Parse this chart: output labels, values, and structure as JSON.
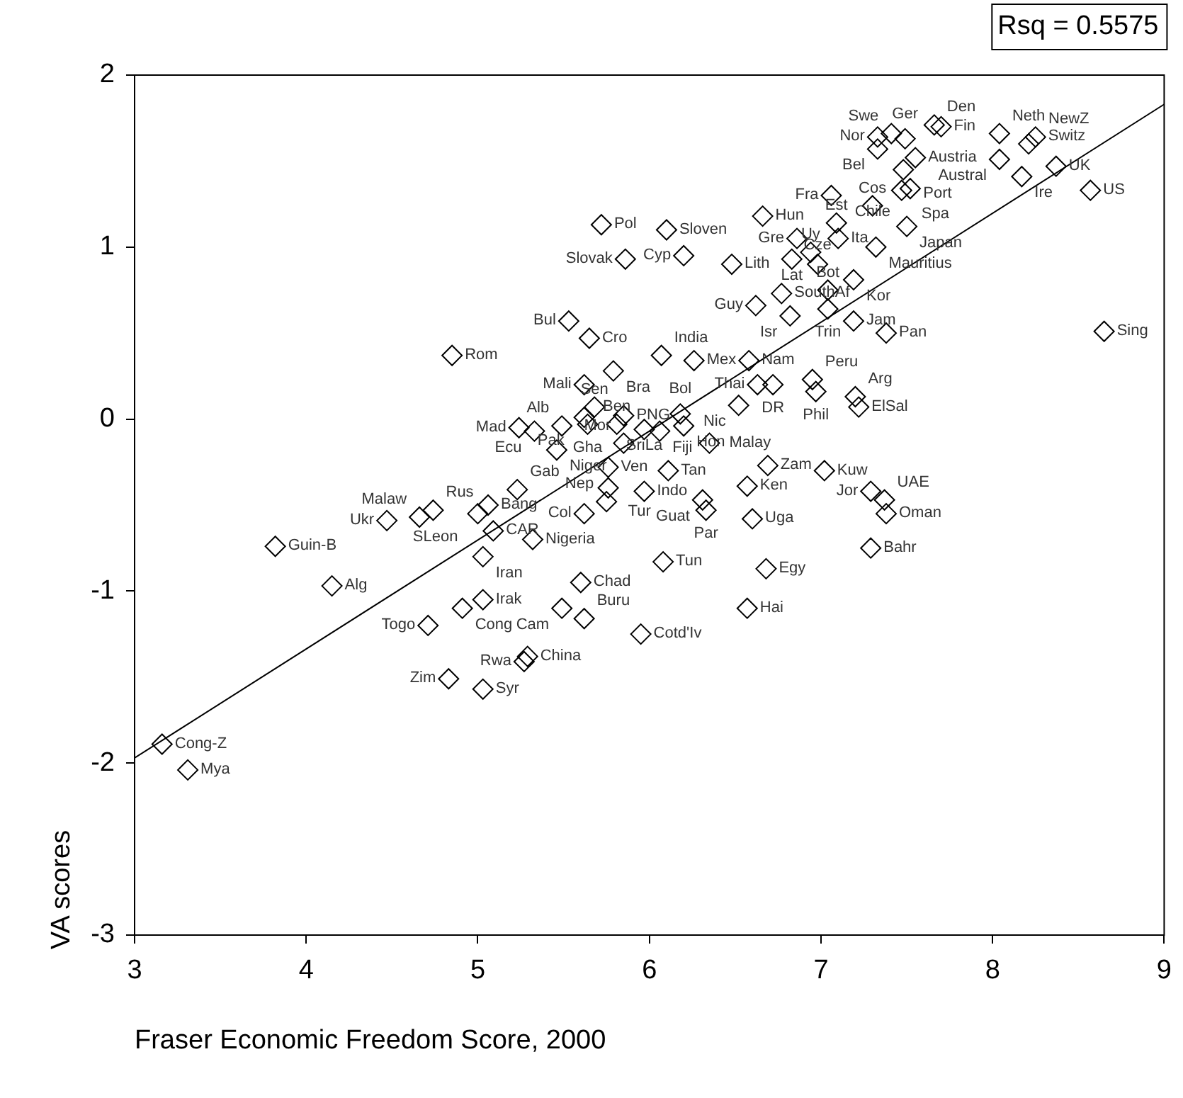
{
  "chart_data": {
    "type": "scatter",
    "xlabel": "Fraser Economic Freedom Score, 2000",
    "ylabel": "VA scores",
    "xlim": [
      3,
      9
    ],
    "xticks": [
      3,
      4,
      5,
      6,
      7,
      8,
      9
    ],
    "ylim": [
      -3,
      2
    ],
    "yticks": [
      -3,
      -2,
      -1,
      0,
      1,
      2
    ],
    "grid": false,
    "legend": false,
    "marker": "diamond",
    "series": [
      {
        "type": "scatter",
        "color": "#000000",
        "x": [
          3.16,
          3.31,
          3.82,
          4.15,
          4.47,
          4.66,
          4.74,
          5.0,
          5.06,
          5.09,
          5.23,
          4.71,
          4.83,
          5.03,
          4.91,
          5.03,
          5.03,
          4.85,
          5.72,
          6.1,
          5.86,
          6.2,
          6.66,
          6.48,
          6.62,
          5.53,
          5.65,
          5.79,
          6.07,
          6.26,
          6.58,
          6.63,
          6.72,
          6.95,
          6.97,
          6.52,
          5.62,
          5.68,
          5.64,
          5.81,
          5.24,
          5.33,
          5.49,
          5.46,
          5.62,
          5.85,
          5.97,
          6.18,
          6.06,
          6.2,
          5.85,
          6.35,
          7.02,
          6.69,
          5.76,
          6.11,
          5.76,
          5.97,
          5.75,
          5.62,
          6.31,
          6.33,
          6.57,
          6.6,
          6.68,
          6.57,
          6.08,
          5.32,
          5.6,
          5.49,
          5.62,
          5.95,
          5.29,
          5.27,
          7.2,
          7.22,
          7.29,
          7.37,
          7.38,
          7.29,
          7.66,
          7.7,
          7.33,
          7.41,
          7.49,
          7.33,
          7.55,
          7.48,
          7.47,
          7.3,
          7.52,
          7.06,
          7.09,
          7.5,
          7.1,
          7.32,
          7.19,
          7.04,
          7.04,
          7.19,
          7.38,
          8.04,
          8.25,
          8.21,
          8.04,
          8.17,
          8.37,
          8.57,
          8.65,
          6.86,
          6.94,
          6.83,
          6.98,
          6.77,
          6.82
        ],
        "values": [
          -1.89,
          -2.04,
          -0.74,
          -0.97,
          -0.59,
          -0.57,
          -0.53,
          -0.55,
          -0.5,
          -0.65,
          -0.41,
          -1.2,
          -1.51,
          -1.57,
          -1.1,
          -0.8,
          -1.05,
          0.37,
          1.13,
          1.1,
          0.93,
          0.95,
          1.18,
          0.9,
          0.66,
          0.57,
          0.47,
          0.28,
          0.37,
          0.34,
          0.34,
          0.2,
          0.2,
          0.23,
          0.16,
          0.08,
          0.2,
          0.07,
          -0.03,
          -0.03,
          -0.05,
          -0.07,
          -0.04,
          -0.18,
          0.01,
          0.02,
          -0.06,
          0.03,
          -0.07,
          -0.04,
          -0.14,
          -0.14,
          -0.3,
          -0.27,
          -0.28,
          -0.3,
          -0.4,
          -0.42,
          -0.48,
          -0.55,
          -0.47,
          -0.53,
          -0.39,
          -0.58,
          -0.87,
          -1.1,
          -0.83,
          -0.7,
          -0.95,
          -1.1,
          -1.16,
          -1.25,
          -1.38,
          -1.41,
          0.13,
          0.07,
          -0.42,
          -0.47,
          -0.55,
          -0.75,
          1.71,
          1.7,
          1.64,
          1.66,
          1.63,
          1.57,
          1.52,
          1.45,
          1.33,
          1.24,
          1.34,
          1.3,
          1.14,
          1.12,
          1.05,
          1.0,
          0.81,
          0.75,
          0.64,
          0.57,
          0.5,
          1.66,
          1.64,
          1.6,
          1.51,
          1.41,
          1.47,
          1.33,
          0.51,
          1.05,
          0.97,
          0.93,
          0.9,
          0.73,
          0.6
        ]
      },
      {
        "type": "line",
        "marker": "none",
        "color": "#000000",
        "x": [
          3,
          9
        ],
        "values": [
          -1.97,
          1.83
        ]
      }
    ],
    "annotations": [
      "Rsq = 0.5575",
      {
        "text": "Cong-Z",
        "x": 3.16,
        "y": -1.89
      },
      {
        "text": "Mya",
        "x": 3.31,
        "y": -2.04
      },
      {
        "text": "Guin-B",
        "x": 3.82,
        "y": -0.74
      },
      {
        "text": "Alg",
        "x": 4.15,
        "y": -0.97
      },
      {
        "text": "Ukr",
        "x": 4.47,
        "y": -0.59
      },
      {
        "text": "Malaw",
        "x": 4.66,
        "y": -0.57
      },
      {
        "text": "Rus",
        "x": 4.74,
        "y": -0.53
      },
      {
        "text": "SLeon",
        "x": 5.0,
        "y": -0.55
      },
      {
        "text": "Bang",
        "x": 5.06,
        "y": -0.5
      },
      {
        "text": "CAR",
        "x": 5.09,
        "y": -0.65
      },
      {
        "text": "Gab",
        "x": 5.23,
        "y": -0.41
      },
      {
        "text": "Togo",
        "x": 4.71,
        "y": -1.2
      },
      {
        "text": "Zim",
        "x": 4.83,
        "y": -1.51
      },
      {
        "text": "Syr",
        "x": 5.03,
        "y": -1.57
      },
      {
        "text": "Cong",
        "x": 4.91,
        "y": -1.1
      },
      {
        "text": "Iran",
        "x": 5.03,
        "y": -0.8
      },
      {
        "text": "Irak",
        "x": 5.03,
        "y": -1.05
      },
      {
        "text": "Rom",
        "x": 4.85,
        "y": 0.37
      },
      {
        "text": "Pol",
        "x": 5.72,
        "y": 1.13
      },
      {
        "text": "Sloven",
        "x": 6.1,
        "y": 1.1
      },
      {
        "text": "Slovak",
        "x": 5.86,
        "y": 0.93
      },
      {
        "text": "Cyp",
        "x": 6.2,
        "y": 0.95
      },
      {
        "text": "Hun",
        "x": 6.66,
        "y": 1.18
      },
      {
        "text": "Lith",
        "x": 6.48,
        "y": 0.9
      },
      {
        "text": "Guy",
        "x": 6.62,
        "y": 0.66
      },
      {
        "text": "Bul",
        "x": 5.53,
        "y": 0.57
      },
      {
        "text": "Cro",
        "x": 5.65,
        "y": 0.47
      },
      {
        "text": "Bra",
        "x": 5.79,
        "y": 0.28
      },
      {
        "text": "India",
        "x": 6.07,
        "y": 0.37
      },
      {
        "text": "Mex",
        "x": 6.26,
        "y": 0.34
      },
      {
        "text": "Nam",
        "x": 6.58,
        "y": 0.34
      },
      {
        "text": "Thai",
        "x": 6.63,
        "y": 0.2
      },
      {
        "text": "DR",
        "x": 6.72,
        "y": 0.2
      },
      {
        "text": "Peru",
        "x": 6.95,
        "y": 0.23
      },
      {
        "text": "Phil",
        "x": 6.97,
        "y": 0.16
      },
      {
        "text": "Nic",
        "x": 6.52,
        "y": 0.08
      },
      {
        "text": "Mali",
        "x": 5.62,
        "y": 0.2
      },
      {
        "text": "Sen",
        "x": 5.68,
        "y": 0.07
      },
      {
        "text": "Gha",
        "x": 5.64,
        "y": -0.03
      },
      {
        "text": "Ben",
        "x": 5.81,
        "y": -0.03
      },
      {
        "text": "Mad",
        "x": 5.24,
        "y": -0.05
      },
      {
        "text": "Ecu",
        "x": 5.33,
        "y": -0.07
      },
      {
        "text": "Alb",
        "x": 5.49,
        "y": -0.04
      },
      {
        "text": "Niger",
        "x": 5.46,
        "y": -0.18
      },
      {
        "text": "Pak",
        "x": 5.62,
        "y": 0.01
      },
      {
        "text": "PNG",
        "x": 5.85,
        "y": 0.02
      },
      {
        "text": "SriLa",
        "x": 5.97,
        "y": -0.06
      },
      {
        "text": "Bol",
        "x": 6.18,
        "y": 0.03
      },
      {
        "text": "Fiji",
        "x": 6.06,
        "y": -0.07
      },
      {
        "text": "Hon",
        "x": 6.2,
        "y": -0.04
      },
      {
        "text": "Mor",
        "x": 5.85,
        "y": -0.14
      },
      {
        "text": "Malay",
        "x": 6.35,
        "y": -0.14
      },
      {
        "text": "Kuw",
        "x": 7.02,
        "y": -0.3
      },
      {
        "text": "Zam",
        "x": 6.69,
        "y": -0.27
      },
      {
        "text": "Ven",
        "x": 5.76,
        "y": -0.28
      },
      {
        "text": "Tan",
        "x": 6.11,
        "y": -0.3
      },
      {
        "text": "Tur",
        "x": 5.76,
        "y": -0.4
      },
      {
        "text": "Indo",
        "x": 5.97,
        "y": -0.42
      },
      {
        "text": "Nep",
        "x": 5.75,
        "y": -0.48
      },
      {
        "text": "Col",
        "x": 5.62,
        "y": -0.55
      },
      {
        "text": "Guat",
        "x": 6.31,
        "y": -0.47
      },
      {
        "text": "Par",
        "x": 6.33,
        "y": -0.53
      },
      {
        "text": "Ken",
        "x": 6.57,
        "y": -0.39
      },
      {
        "text": "Uga",
        "x": 6.6,
        "y": -0.58
      },
      {
        "text": "Egy",
        "x": 6.68,
        "y": -0.87
      },
      {
        "text": "Hai",
        "x": 6.57,
        "y": -1.1
      },
      {
        "text": "Tun",
        "x": 6.08,
        "y": -0.83
      },
      {
        "text": "Nigeria",
        "x": 5.32,
        "y": -0.7
      },
      {
        "text": "Chad",
        "x": 5.6,
        "y": -0.95
      },
      {
        "text": "Cam",
        "x": 5.49,
        "y": -1.1
      },
      {
        "text": "Buru",
        "x": 5.62,
        "y": -1.16
      },
      {
        "text": "Cotd'Iv",
        "x": 5.95,
        "y": -1.25
      },
      {
        "text": "China",
        "x": 5.29,
        "y": -1.38
      },
      {
        "text": "Rwa",
        "x": 5.27,
        "y": -1.41
      },
      {
        "text": "Arg",
        "x": 7.2,
        "y": 0.13
      },
      {
        "text": "ElSal",
        "x": 7.22,
        "y": 0.07
      },
      {
        "text": "Jor",
        "x": 7.29,
        "y": -0.42
      },
      {
        "text": "UAE",
        "x": 7.37,
        "y": -0.47
      },
      {
        "text": "Oman",
        "x": 7.38,
        "y": -0.55
      },
      {
        "text": "Bahr",
        "x": 7.29,
        "y": -0.75
      },
      {
        "text": "Den",
        "x": 7.66,
        "y": 1.71
      },
      {
        "text": "Fin",
        "x": 7.7,
        "y": 1.7
      },
      {
        "text": "Nor",
        "x": 7.33,
        "y": 1.64
      },
      {
        "text": "Swe",
        "x": 7.41,
        "y": 1.66
      },
      {
        "text": "Ger",
        "x": 7.49,
        "y": 1.63
      },
      {
        "text": "Bel",
        "x": 7.33,
        "y": 1.57
      },
      {
        "text": "Austria",
        "x": 7.55,
        "y": 1.52
      },
      {
        "text": "Port",
        "x": 7.48,
        "y": 1.45
      },
      {
        "text": "Spa",
        "x": 7.47,
        "y": 1.33
      },
      {
        "text": "Cos",
        "x": 7.3,
        "y": 1.24
      },
      {
        "text": "Chile",
        "x": 7.52,
        "y": 1.34
      },
      {
        "text": "Fra",
        "x": 7.06,
        "y": 1.3
      },
      {
        "text": "Est",
        "x": 7.09,
        "y": 1.14
      },
      {
        "text": "Japan",
        "x": 7.5,
        "y": 1.12
      },
      {
        "text": "Ita",
        "x": 7.1,
        "y": 1.05
      },
      {
        "text": "Mauritius",
        "x": 7.32,
        "y": 1.0
      },
      {
        "text": "Kor",
        "x": 7.19,
        "y": 0.81
      },
      {
        "text": "Bot",
        "x": 7.04,
        "y": 0.75
      },
      {
        "text": "Trin",
        "x": 7.04,
        "y": 0.64
      },
      {
        "text": "Jam",
        "x": 7.19,
        "y": 0.57
      },
      {
        "text": "Pan",
        "x": 7.38,
        "y": 0.5
      },
      {
        "text": "Neth",
        "x": 8.04,
        "y": 1.66
      },
      {
        "text": "Switz",
        "x": 8.25,
        "y": 1.64
      },
      {
        "text": "NewZ",
        "x": 8.21,
        "y": 1.6
      },
      {
        "text": "Austral",
        "x": 8.04,
        "y": 1.51
      },
      {
        "text": "Ire",
        "x": 8.17,
        "y": 1.41
      },
      {
        "text": "UK",
        "x": 8.37,
        "y": 1.47
      },
      {
        "text": "US",
        "x": 8.57,
        "y": 1.33
      },
      {
        "text": "Sing",
        "x": 8.65,
        "y": 0.51
      },
      {
        "text": "Gre",
        "x": 6.86,
        "y": 1.05
      },
      {
        "text": "Uy",
        "x": 6.94,
        "y": 0.97
      },
      {
        "text": "Lat",
        "x": 6.83,
        "y": 0.93
      },
      {
        "text": "Cze",
        "x": 6.98,
        "y": 0.9
      },
      {
        "text": "SouthAf",
        "x": 6.77,
        "y": 0.73
      },
      {
        "text": "Isr",
        "x": 6.82,
        "y": 0.6
      }
    ]
  }
}
